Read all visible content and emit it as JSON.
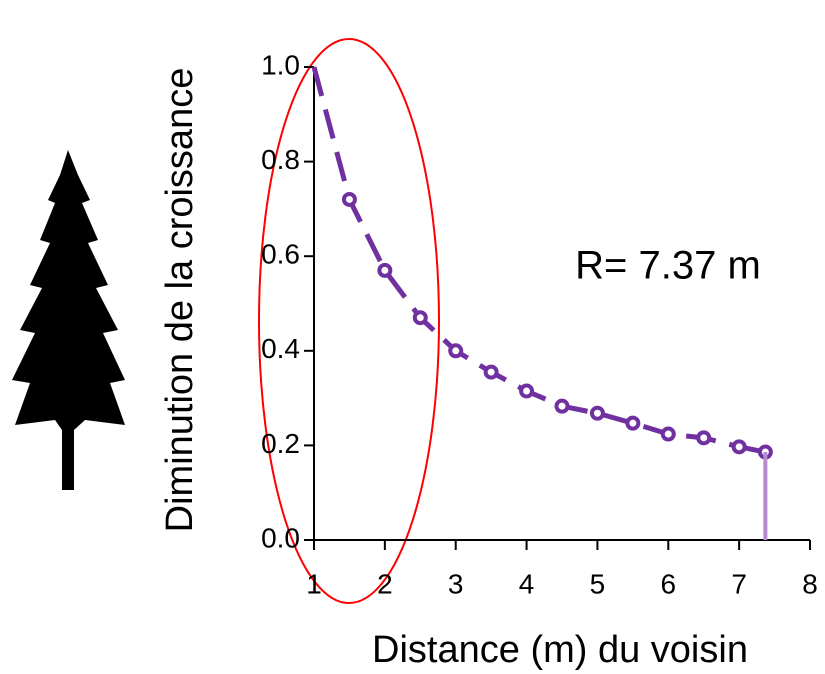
{
  "chart_data": {
    "type": "line",
    "xlabel": "Distance (m) du voisin",
    "ylabel": "Diminution de la croissance",
    "annotation": "R= 7.37 m",
    "annotation_color": "#ff0000",
    "xlim": [
      1,
      8
    ],
    "xticks": [
      1,
      2,
      3,
      4,
      5,
      6,
      7,
      8
    ],
    "ylim": [
      0,
      1
    ],
    "yticks": [
      {
        "value": 0,
        "label": "0.0"
      },
      0.2,
      0.4,
      0.6,
      0.8,
      {
        "value": 1,
        "label": "1.0"
      }
    ],
    "series": [
      {
        "color": "#7030a0",
        "style": "dashed",
        "x": [
          1,
          1.5,
          2,
          2.5,
          3,
          3.5,
          4,
          4.5,
          5,
          5.5,
          6,
          6.5,
          7,
          7.37
        ],
        "values": [
          1.0,
          0.72,
          0.57,
          0.47,
          0.4,
          0.355,
          0.315,
          0.283,
          0.268,
          0.247,
          0.224,
          0.216,
          0.197,
          0.186
        ]
      },
      {
        "color": "#7030a0",
        "style": "markers",
        "x": [
          1.5,
          2,
          2.5,
          3,
          3.5,
          4,
          4.5,
          5,
          5.5,
          6,
          6.5,
          7,
          7.37
        ],
        "values": [
          0.72,
          0.57,
          0.47,
          0.4,
          0.355,
          0.315,
          0.283,
          0.268,
          0.247,
          0.224,
          0.216,
          0.197,
          0.186
        ]
      },
      {
        "color": "#b58ad0",
        "style": "stem",
        "x": [
          7.37
        ],
        "values": [
          0.186
        ]
      }
    ]
  }
}
